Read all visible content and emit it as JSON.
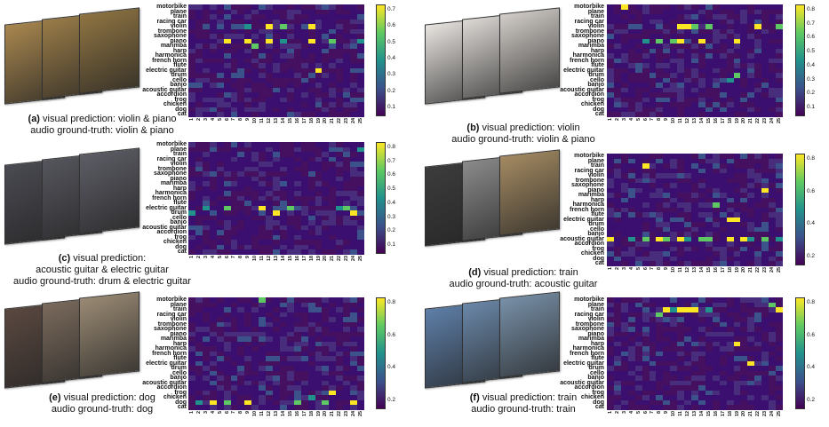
{
  "labels": [
    "motorbike",
    "plane",
    "train",
    "racing car",
    "violin",
    "trombone",
    "saxophone",
    "piano",
    "marimba",
    "harp",
    "harmonica",
    "french horn",
    "flute",
    "electric guitar",
    "drum",
    "cello",
    "banjo",
    "acoustic guitar",
    "accordion",
    "frog",
    "chicken",
    "dog",
    "cat"
  ],
  "x_ticks": [
    "1",
    "2",
    "3",
    "4",
    "5",
    "6",
    "7",
    "8",
    "9",
    "10",
    "11",
    "12",
    "13",
    "14",
    "15",
    "16",
    "17",
    "18",
    "19",
    "20",
    "21",
    "22",
    "23",
    "24",
    "25"
  ],
  "panels": [
    {
      "id": "a",
      "caption_letter": "(a)",
      "caption_line1": "visual prediction: violin & piano",
      "caption_line2": "audio ground-truth: violin & piano",
      "colorbar_ticks": [
        "0.7",
        "0.6",
        "0.5",
        "0.4",
        "0.3",
        "0.2",
        "0.1"
      ],
      "highlights": [
        [
          4,
          8
        ],
        [
          4,
          11
        ],
        [
          4,
          13
        ],
        [
          4,
          17
        ],
        [
          7,
          5
        ],
        [
          7,
          8
        ],
        [
          7,
          11
        ],
        [
          7,
          13
        ],
        [
          7,
          17
        ],
        [
          7,
          20
        ],
        [
          7,
          24
        ],
        [
          13,
          18
        ],
        [
          8,
          9
        ]
      ],
      "frame_colors": [
        "#a9874f",
        "#9a7c48",
        "#8f7442"
      ]
    },
    {
      "id": "b",
      "caption_letter": "(b)",
      "caption_line1": "visual prediction: violin",
      "caption_line2": "audio ground-truth: violin & piano",
      "colorbar_ticks": [
        "0.8",
        "0.7",
        "0.6",
        "0.5",
        "0.4",
        "0.3",
        "0.2",
        "0.1"
      ],
      "highlights": [
        [
          0,
          2
        ],
        [
          4,
          10
        ],
        [
          4,
          11
        ],
        [
          4,
          12
        ],
        [
          4,
          14
        ],
        [
          4,
          21
        ],
        [
          4,
          24
        ],
        [
          7,
          5
        ],
        [
          7,
          7
        ],
        [
          7,
          9
        ],
        [
          7,
          10
        ],
        [
          7,
          13
        ],
        [
          7,
          18
        ],
        [
          15,
          17
        ],
        [
          14,
          18
        ]
      ],
      "frame_colors": [
        "#e8e4e0",
        "#dcd8d4",
        "#d2cdc8"
      ]
    },
    {
      "id": "c",
      "caption_letter": "(c)",
      "caption_line1": "visual prediction:",
      "caption_line2": "acoustic guitar & electric guitar",
      "caption_line3": "audio ground-truth: drum & electric guitar",
      "colorbar_ticks": [
        "0.8",
        "0.7",
        "0.6",
        "0.5",
        "0.4",
        "0.3",
        "0.2",
        "0.1"
      ],
      "highlights": [
        [
          1,
          24
        ],
        [
          13,
          2
        ],
        [
          13,
          10
        ],
        [
          13,
          14
        ],
        [
          13,
          21
        ],
        [
          13,
          22
        ],
        [
          14,
          0
        ],
        [
          14,
          12
        ],
        [
          14,
          23
        ],
        [
          13,
          5
        ]
      ],
      "frame_colors": [
        "#4a4a52",
        "#55555d",
        "#5d5d66"
      ]
    },
    {
      "id": "d",
      "caption_letter": "(d)",
      "caption_line1": "visual prediction: train",
      "caption_line2": "audio ground-truth: acoustic guitar",
      "colorbar_ticks": [
        "0.8",
        "0.6",
        "0.4",
        "0.2"
      ],
      "highlights": [
        [
          2,
          5
        ],
        [
          7,
          22
        ],
        [
          10,
          15
        ],
        [
          13,
          17
        ],
        [
          13,
          18
        ],
        [
          17,
          0
        ],
        [
          17,
          3
        ],
        [
          17,
          5
        ],
        [
          17,
          7
        ],
        [
          17,
          8
        ],
        [
          17,
          10
        ],
        [
          17,
          11
        ],
        [
          17,
          13
        ],
        [
          17,
          14
        ],
        [
          17,
          17
        ],
        [
          17,
          19
        ],
        [
          17,
          20
        ],
        [
          17,
          22
        ],
        [
          17,
          24
        ]
      ],
      "frame_colors": [
        "#3c3c3c",
        "#8a8a8a",
        "#a48a62"
      ]
    },
    {
      "id": "e",
      "caption_letter": "(e)",
      "caption_line1": "visual prediction: dog",
      "caption_line2": "audio ground-truth: dog",
      "colorbar_ticks": [
        "0.8",
        "0.6",
        "0.4",
        "0.2"
      ],
      "highlights": [
        [
          0,
          10
        ],
        [
          21,
          1
        ],
        [
          21,
          3
        ],
        [
          21,
          5
        ],
        [
          21,
          8
        ],
        [
          21,
          15
        ],
        [
          21,
          19
        ],
        [
          21,
          23
        ],
        [
          19,
          20
        ],
        [
          20,
          17
        ]
      ],
      "frame_colors": [
        "#5a4840",
        "#7a6a5c",
        "#9a8a74"
      ]
    },
    {
      "id": "f",
      "caption_letter": "(f)",
      "caption_line1": "visual prediction: train",
      "caption_line2": "audio ground-truth: train",
      "colorbar_ticks": [
        "0.8",
        "0.6",
        "0.4",
        "0.2"
      ],
      "highlights": [
        [
          2,
          8
        ],
        [
          2,
          9
        ],
        [
          2,
          10
        ],
        [
          2,
          11
        ],
        [
          2,
          12
        ],
        [
          2,
          14
        ],
        [
          2,
          24
        ],
        [
          1,
          23
        ],
        [
          9,
          18
        ],
        [
          13,
          20
        ],
        [
          3,
          7
        ]
      ],
      "frame_colors": [
        "#5e7fa8",
        "#6a87a8",
        "#7890a8"
      ]
    }
  ],
  "colors": {
    "low": "#3b0f70",
    "mid": "#2a788e",
    "hi": "#fde725"
  }
}
